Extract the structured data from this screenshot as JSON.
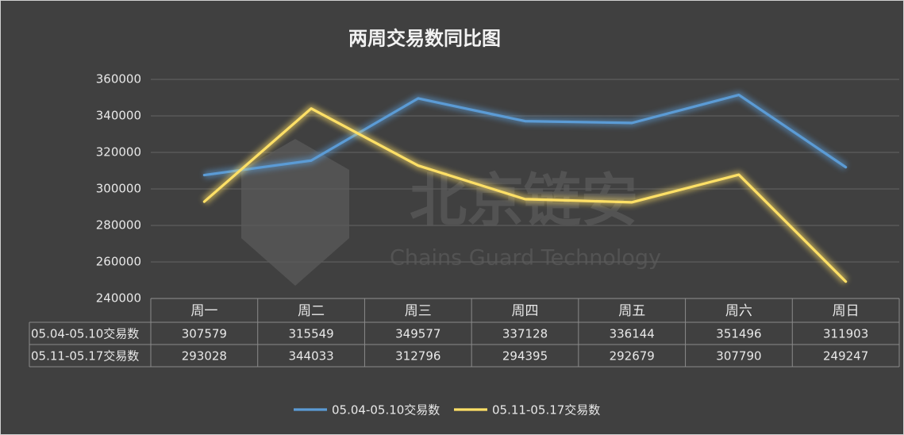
{
  "chart_data": {
    "type": "line",
    "title": "两周交易数同比图",
    "categories": [
      "周一",
      "周二",
      "周三",
      "周四",
      "周五",
      "周六",
      "周日"
    ],
    "series": [
      {
        "name": "05.04-05.10交易数",
        "color": "#5b9bd5",
        "values": [
          307579,
          315549,
          349577,
          337128,
          336144,
          351496,
          311903
        ]
      },
      {
        "name": "05.11-05.17交易数",
        "color": "#ffe066",
        "values": [
          293028,
          344033,
          312796,
          294395,
          292679,
          307790,
          249247
        ]
      }
    ],
    "ylim": [
      240000,
      360000
    ],
    "yticks": [
      240000,
      260000,
      280000,
      300000,
      320000,
      340000,
      360000
    ],
    "grid": true,
    "legend": "bottom",
    "watermark": [
      "北京链安",
      "Chains Guard Technology"
    ]
  }
}
